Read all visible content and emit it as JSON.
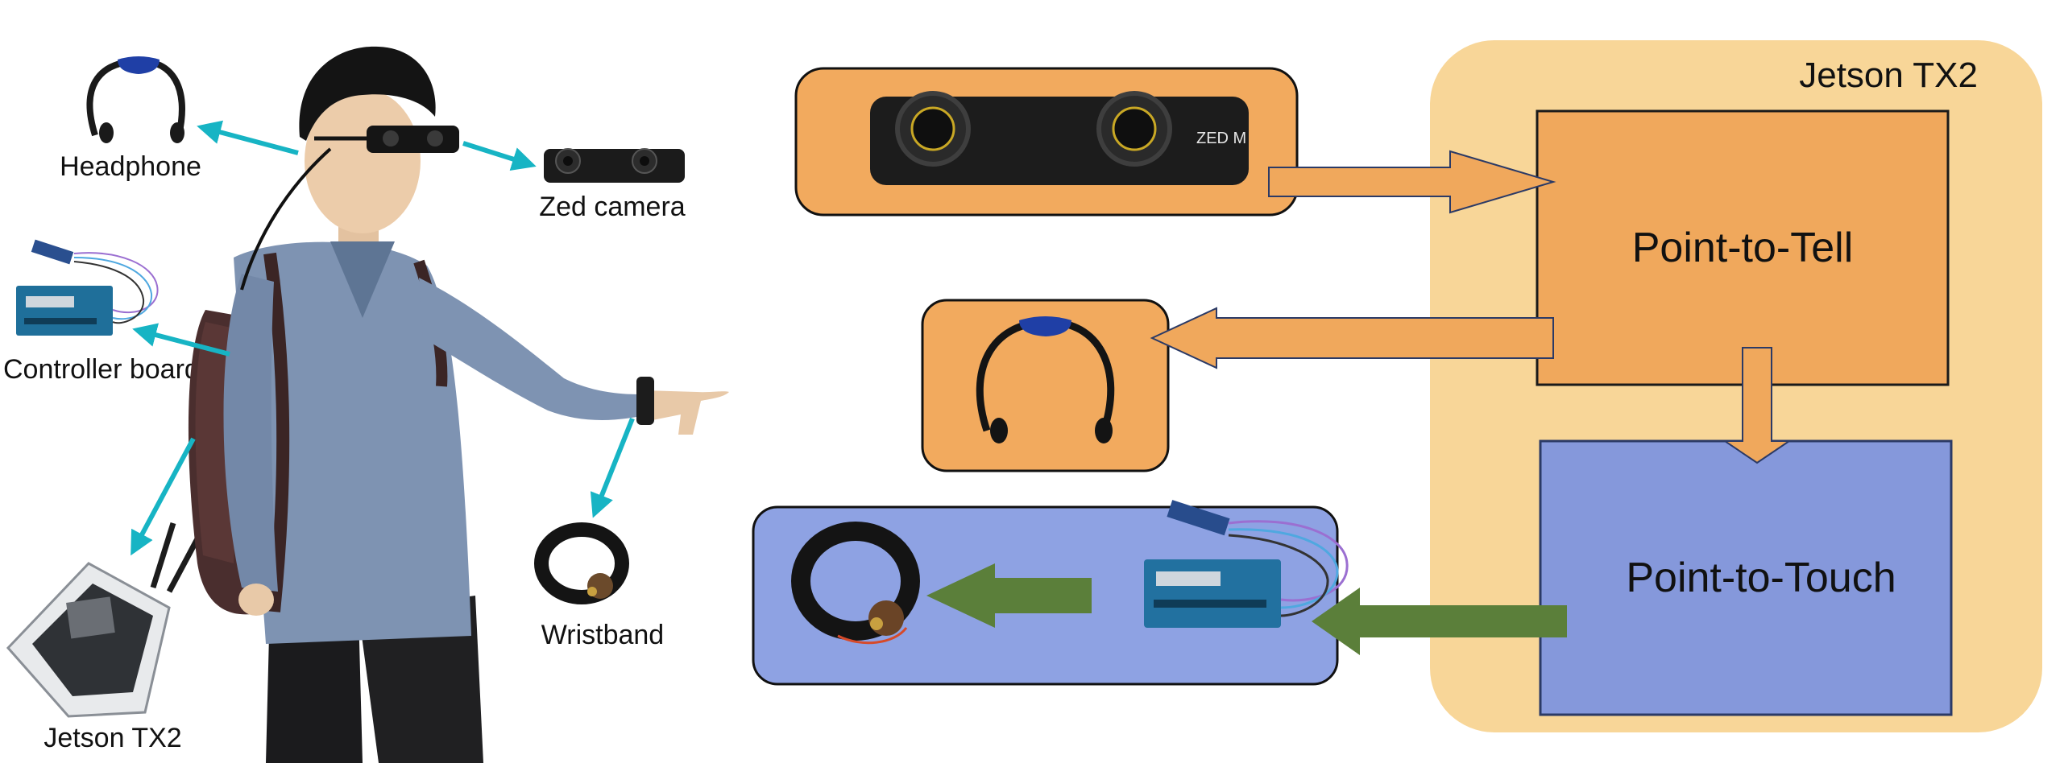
{
  "left_panel": {
    "labels": {
      "headphone": "Headphone",
      "zed_camera": "Zed camera",
      "controller_board": "Controller board",
      "wristband": "Wristband",
      "jetson": "Jetson TX2"
    }
  },
  "right_panel": {
    "jetson_title": "Jetson TX2",
    "point_to_tell": "Point-to-Tell",
    "point_to_touch": "Point-to-Touch",
    "zed_logo": "ZED M"
  },
  "colors": {
    "teal_arrow": "#17b4c4",
    "orange_box": "#f2aa5e",
    "orange_block": "#f0a85c",
    "blue_box": "#8ea2e3",
    "blue_block": "#8598db",
    "jetson_panel": "#f8d698",
    "green_arrow": "#5b7f3a",
    "outline": "#2b3a66"
  }
}
